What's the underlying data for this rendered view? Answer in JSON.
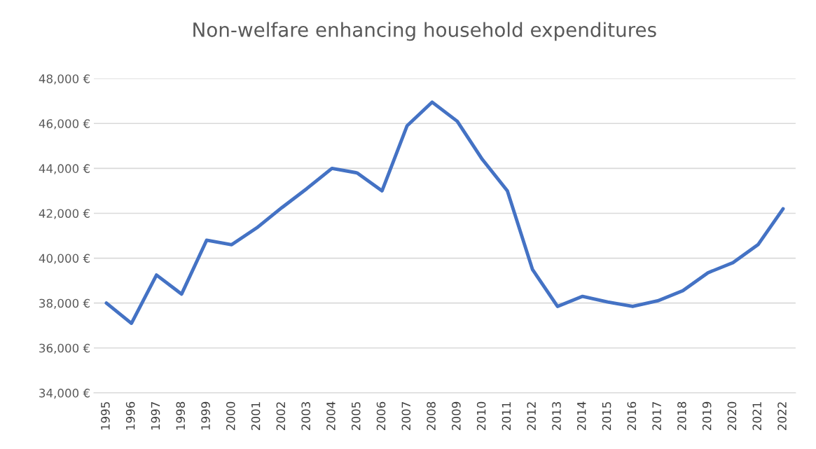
{
  "chart_data": {
    "type": "line",
    "title": "Non-welfare enhancing household expenditures",
    "categories": [
      "1995",
      "1996",
      "1997",
      "1998",
      "1999",
      "2000",
      "2001",
      "2002",
      "2003",
      "2004",
      "2005",
      "2006",
      "2007",
      "2008",
      "2009",
      "2010",
      "2011",
      "2012",
      "2013",
      "2014",
      "2015",
      "2016",
      "2017",
      "2018",
      "2019",
      "2020",
      "2021",
      "2022"
    ],
    "series": [
      {
        "color": "#4472c4",
        "values": [
          38000,
          37100,
          39250,
          38400,
          40800,
          40600,
          41350,
          42250,
          43100,
          44000,
          43800,
          43000,
          45900,
          46950,
          46100,
          44400,
          43000,
          39500,
          37850,
          38300,
          38050,
          37850,
          38100,
          38550,
          39350,
          39800,
          40600,
          42200
        ]
      }
    ],
    "ylim": [
      34000,
      48000
    ],
    "yticks": [
      {
        "value": 34000,
        "label": "34,000 €"
      },
      {
        "value": 36000,
        "label": "36,000 €"
      },
      {
        "value": 38000,
        "label": "38,000 €"
      },
      {
        "value": 40000,
        "label": "40,000 €"
      },
      {
        "value": 42000,
        "label": "42,000 €"
      },
      {
        "value": 44000,
        "label": "44,000 €"
      },
      {
        "value": 46000,
        "label": "46,000 €"
      },
      {
        "value": 48000,
        "label": "48,000 €"
      }
    ],
    "grid": "y",
    "legend": false,
    "marker": "none",
    "line_style": "solid"
  }
}
